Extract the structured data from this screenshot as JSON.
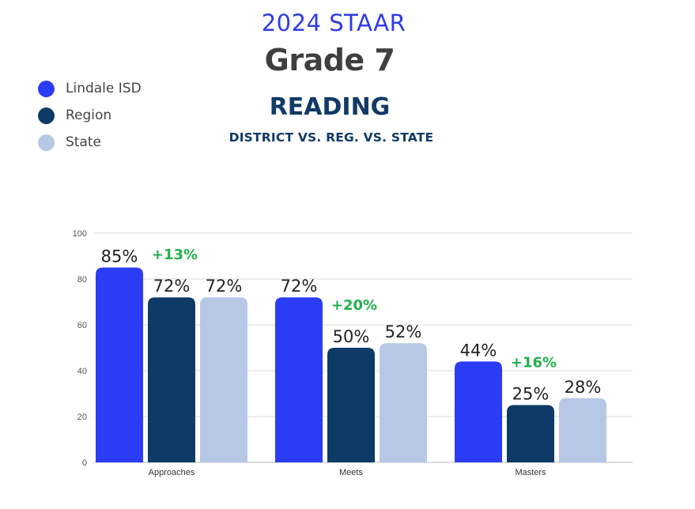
{
  "header": {
    "line1": "2024 STAAR",
    "line2": "Grade 7",
    "line3": "READING",
    "line4": "DISTRICT VS. REG. VS. STATE"
  },
  "colors": {
    "title_blue": "#2f3be6",
    "title_gray": "#3f3f3f",
    "title_navy": "#113a66",
    "diff_green": "#22b04b",
    "axis_text": "#555555",
    "grid": "#dddddd"
  },
  "chart_data": {
    "type": "bar",
    "categories": [
      "Approaches",
      "Meets",
      "Masters"
    ],
    "series": [
      {
        "name": "Lindale ISD",
        "color": "#2b3cf5",
        "values": [
          85,
          72,
          44
        ],
        "labels": [
          "85%",
          "72%",
          "44%"
        ]
      },
      {
        "name": "Region",
        "color": "#0d3a66",
        "values": [
          72,
          50,
          25
        ],
        "labels": [
          "72%",
          "50%",
          "25%"
        ]
      },
      {
        "name": "State",
        "color": "#b6c8e6",
        "values": [
          72,
          52,
          28
        ],
        "labels": [
          "72%",
          "52%",
          "28%"
        ]
      }
    ],
    "differences": [
      "+13%",
      "+20%",
      "+16%"
    ],
    "ylim": [
      0,
      100
    ],
    "yticks": [
      0,
      20,
      40,
      60,
      80,
      100
    ],
    "grid": true,
    "legend_position": "top-left"
  }
}
